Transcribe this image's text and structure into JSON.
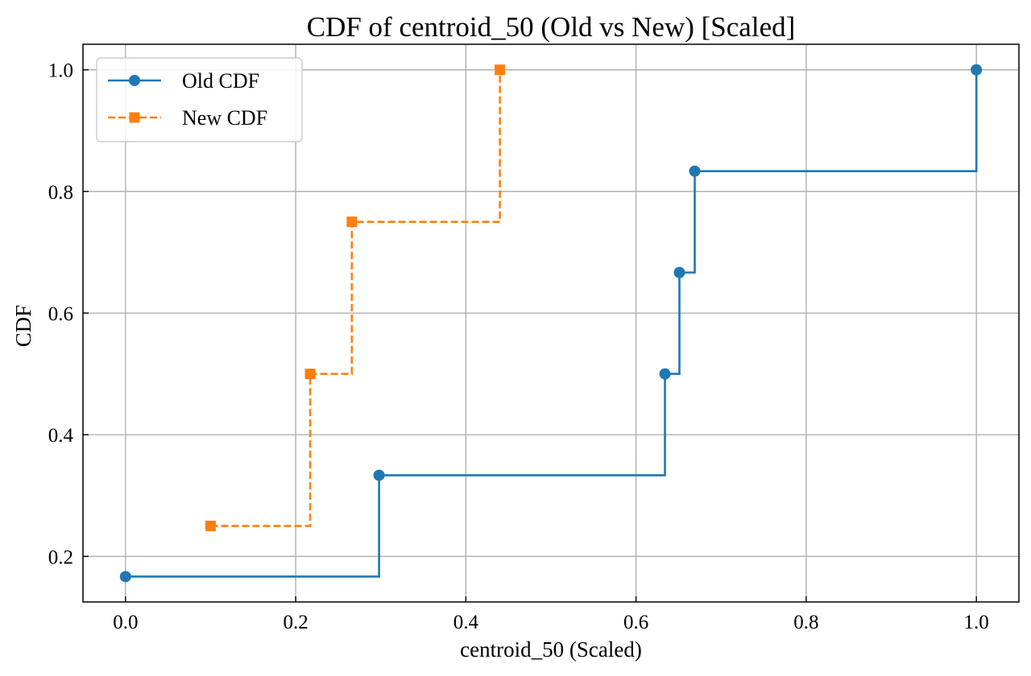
{
  "chart_data": {
    "type": "line",
    "title": "CDF of centroid_50 (Old vs New) [Scaled]",
    "xlabel": "centroid_50 (Scaled)",
    "ylabel": "CDF",
    "xlim": [
      -0.05,
      1.05
    ],
    "ylim": [
      0.125,
      1.042
    ],
    "xticks": [
      0.0,
      0.2,
      0.4,
      0.6,
      0.8,
      1.0
    ],
    "xtick_labels": [
      "0.0",
      "0.2",
      "0.4",
      "0.6",
      "0.8",
      "1.0"
    ],
    "yticks": [
      0.2,
      0.4,
      0.6,
      0.8,
      1.0
    ],
    "ytick_labels": [
      "0.2",
      "0.4",
      "0.6",
      "0.8",
      "1.0"
    ],
    "grid": true,
    "legend_position": "upper-left",
    "step": "post",
    "series": [
      {
        "name": "Old CDF",
        "color": "#1f77b4",
        "linestyle": "solid",
        "marker": "circle",
        "x": [
          0.0,
          0.298,
          0.634,
          0.651,
          0.669,
          1.0
        ],
        "y": [
          0.1667,
          0.3333,
          0.5,
          0.6667,
          0.8333,
          1.0
        ]
      },
      {
        "name": "New CDF",
        "color": "#ff7f0e",
        "linestyle": "dashed",
        "marker": "square",
        "x": [
          0.1,
          0.217,
          0.266,
          0.44
        ],
        "y": [
          0.25,
          0.5,
          0.75,
          1.0
        ]
      }
    ]
  }
}
